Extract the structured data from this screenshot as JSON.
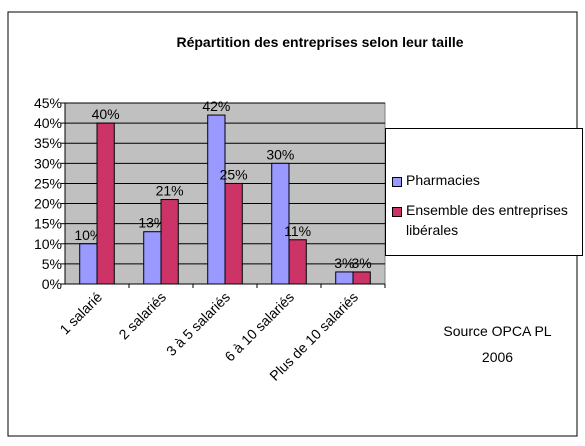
{
  "chart_data": {
    "type": "bar",
    "title": "Répartition des entreprises selon leur taille",
    "categories": [
      "1 salarié",
      "2 salariés",
      "3 à 5 salariés",
      "6 à 10 salariés",
      "Plus de 10 salariés"
    ],
    "series": [
      {
        "name": "Pharmacies",
        "color": "#9999ff",
        "values": [
          10,
          13,
          42,
          30,
          3
        ],
        "value_labels": [
          "10%",
          "13%",
          "42%",
          "30%",
          "3%"
        ]
      },
      {
        "name": "Ensemble des entreprises libérales",
        "color": "#cc3366",
        "values": [
          40,
          21,
          25,
          11,
          3
        ],
        "value_labels": [
          "40%",
          "21%",
          "25%",
          "11%",
          "3%"
        ]
      }
    ],
    "ylim": [
      0,
      45
    ],
    "yticks": [
      {
        "value": 0,
        "label": "0%"
      },
      {
        "value": 5,
        "label": "5%"
      },
      {
        "value": 10,
        "label": "10%"
      },
      {
        "value": 15,
        "label": "15%"
      },
      {
        "value": 20,
        "label": "20%"
      },
      {
        "value": 25,
        "label": "25%"
      },
      {
        "value": 30,
        "label": "30%"
      },
      {
        "value": 35,
        "label": "35%"
      },
      {
        "value": 40,
        "label": "40%"
      },
      {
        "value": 45,
        "label": "45%"
      }
    ],
    "grid": true,
    "legend": "right",
    "annotation": [
      "Source OPCA PL",
      "2006"
    ]
  }
}
